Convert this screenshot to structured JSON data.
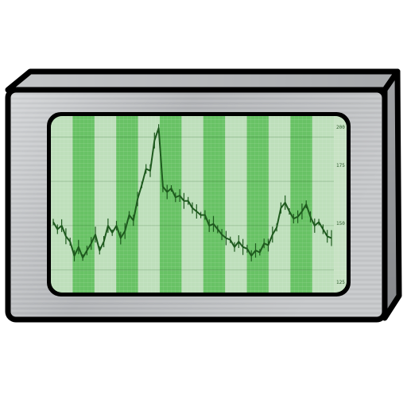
{
  "icon": {
    "name": "stock-chart-monitor-icon",
    "colors": {
      "outline": "#000000",
      "metal_light": "#c9cbcd",
      "metal_mid": "#a9abae",
      "metal_dark": "#8c8e91",
      "screen_base": "#8fd08a",
      "stripe_dark": "#62bf5e",
      "stripe_light": "#c7e2c3",
      "line": "#1e5a1e"
    }
  },
  "screen": {
    "axis_labels": [
      "200",
      "175",
      "150",
      "125"
    ]
  },
  "chart_data": {
    "type": "line",
    "title": "",
    "xlabel": "",
    "ylabel": "",
    "ylim": [
      115,
      210
    ],
    "y_ticks": [
      125,
      150,
      175,
      200
    ],
    "series": [
      {
        "values": [
          152,
          148,
          150,
          144,
          141,
          133,
          138,
          132,
          136,
          140,
          145,
          136,
          141,
          150,
          146,
          150,
          143,
          147,
          156,
          153,
          165,
          173,
          182,
          181,
          198,
          205,
          172,
          169,
          171,
          166,
          167,
          164,
          164,
          160,
          158,
          156,
          156,
          150,
          151,
          148,
          145,
          143,
          142,
          138,
          141,
          138,
          137,
          133,
          136,
          135,
          140,
          139,
          145,
          149,
          160,
          163,
          158,
          154,
          155,
          158,
          162,
          155,
          150,
          152,
          148,
          144,
          143
        ]
      }
    ]
  }
}
